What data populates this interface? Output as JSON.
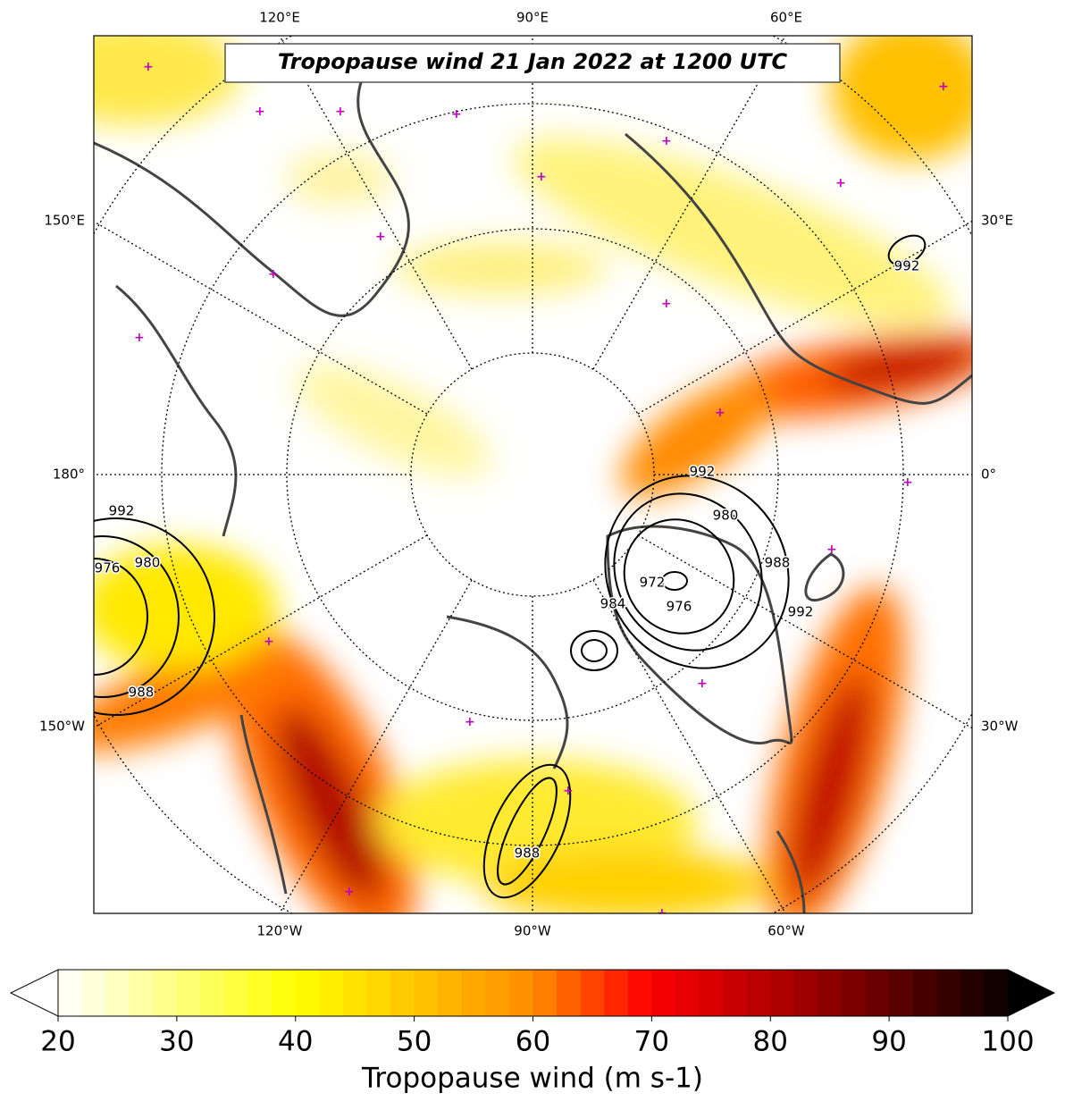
{
  "title": "Tropopause wind 21 Jan 2022 at 1200 UTC",
  "longitude_labels": [
    "120°E",
    "90°E",
    "60°E",
    "150°E",
    "30°E",
    "180°",
    "0°",
    "150°W",
    "30°W",
    "120°W",
    "90°W",
    "60°W"
  ],
  "contour_labels": [
    992,
    980,
    988,
    992,
    972,
    976,
    984,
    992,
    976,
    980,
    988,
    988,
    992
  ],
  "colorbar": {
    "label": "Tropopause wind (m s-1)",
    "lim": [
      20,
      100
    ],
    "ticks": [
      20,
      30,
      40,
      50,
      60,
      70,
      80,
      90,
      100
    ]
  }
}
